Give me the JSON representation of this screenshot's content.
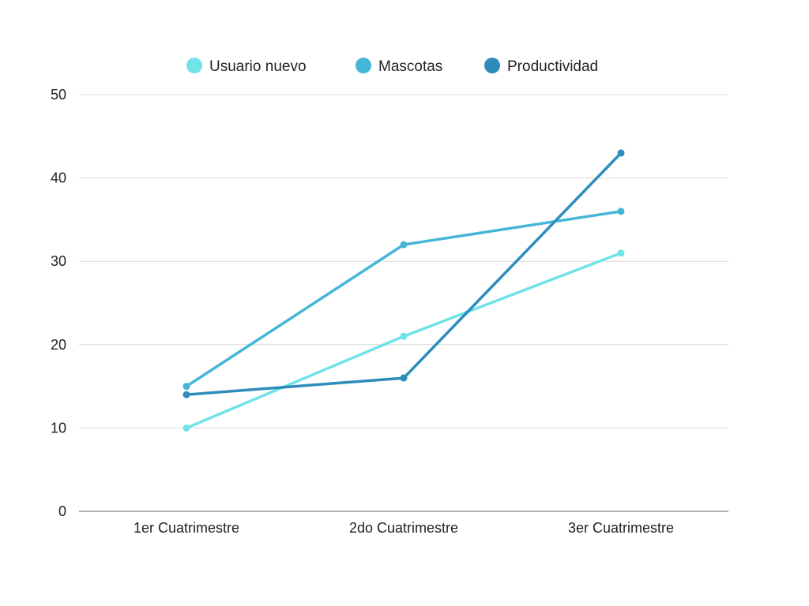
{
  "chart_data": {
    "type": "line",
    "categories": [
      "1er Cuatrimestre",
      "2do Cuatrimestre",
      "3er Cuatrimestre"
    ],
    "series": [
      {
        "name": "Usuario nuevo",
        "values": [
          10,
          21,
          31
        ],
        "color": "#6fe3e8"
      },
      {
        "name": "Mascotas",
        "values": [
          15,
          32,
          36
        ],
        "color": "#45b5d8"
      },
      {
        "name": "Productividad",
        "values": [
          14,
          16,
          43
        ],
        "color": "#2e8cbc"
      }
    ],
    "yticks": [
      0,
      10,
      20,
      30,
      40,
      50
    ],
    "ylim": [
      0,
      50
    ],
    "grid": true,
    "legend_position": "top-center"
  }
}
